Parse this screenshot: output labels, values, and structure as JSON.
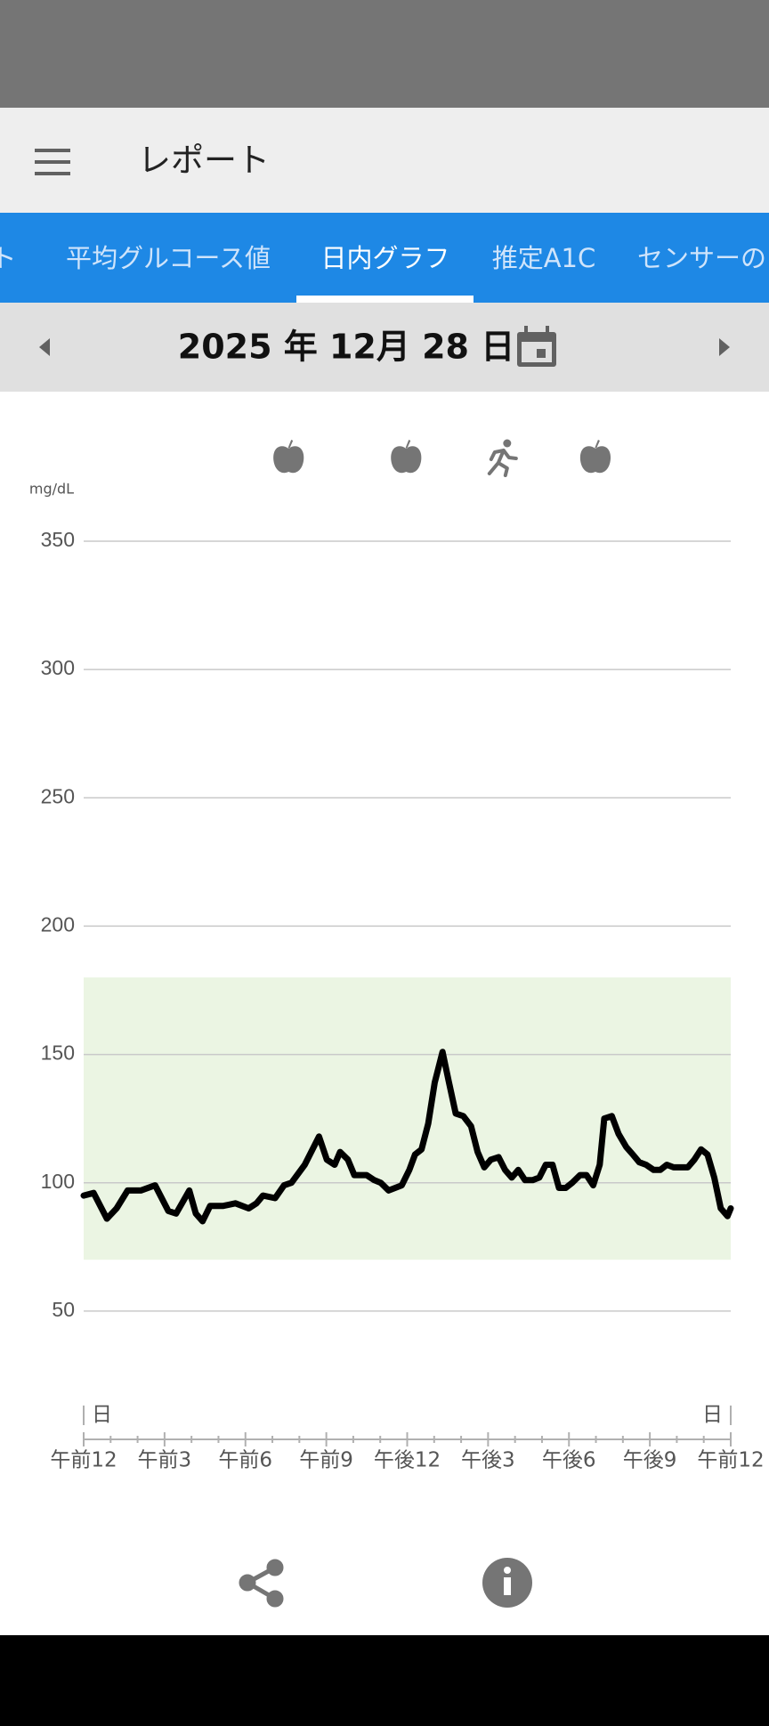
{
  "app_bar": {
    "title": "レポート"
  },
  "tabs": {
    "items": [
      "ト",
      "平均グルコース値",
      "日内グラフ",
      "推定A1C",
      "センサーの"
    ],
    "selected": 2
  },
  "date": "2025 年 12月 28 日",
  "chart_data": {
    "type": "line",
    "y_unit": "mg/dL",
    "color": "#000000",
    "x": [
      0,
      0.37,
      0.86,
      1.22,
      1.63,
      2.12,
      2.65,
      3.14,
      3.43,
      3.92,
      4.16,
      4.41,
      4.69,
      5.18,
      5.63,
      6.12,
      6.41,
      6.65,
      7.1,
      7.43,
      7.71,
      8.2,
      8.73,
      9.02,
      9.31,
      9.51,
      9.8,
      10.04,
      10.49,
      10.78,
      11.02,
      11.31,
      11.8,
      12.08,
      12.29,
      12.53,
      12.78,
      13.02,
      13.31,
      13.55,
      13.8,
      14.08,
      14.37,
      14.61,
      14.86,
      15.1,
      15.39,
      15.63,
      15.88,
      16.12,
      16.37,
      16.65,
      16.9,
      17.14,
      17.39,
      17.63,
      17.88,
      18.12,
      18.41,
      18.65,
      18.9,
      19.14,
      19.31,
      19.59,
      19.84,
      20.12,
      20.37,
      20.61,
      20.86,
      21.14,
      21.39,
      21.63,
      21.88,
      22.41,
      22.65,
      22.9,
      23.14,
      23.39,
      23.63,
      23.88,
      24
    ],
    "values": [
      95,
      96,
      86,
      90,
      97,
      97,
      99,
      89,
      88,
      97,
      88,
      85,
      91,
      91,
      92,
      90,
      92,
      95,
      94,
      99,
      100,
      107,
      118,
      109,
      107,
      112,
      109,
      103,
      103,
      101,
      100,
      97,
      99,
      105,
      111,
      113,
      123,
      139,
      151,
      139,
      127,
      126,
      122,
      112,
      106,
      109,
      110,
      105,
      102,
      105,
      101,
      101,
      102,
      107,
      107,
      98,
      98,
      100,
      103,
      103,
      99,
      107,
      125,
      126,
      119,
      114,
      111,
      108,
      107,
      105,
      105,
      107,
      106,
      106,
      109,
      113,
      111,
      102,
      90,
      87,
      90
    ],
    "target_range": [
      70,
      180
    ],
    "target_color": "#ebf5e3",
    "ylim": [
      0,
      350
    ],
    "yticks": [
      50,
      100,
      150,
      200,
      250,
      300,
      350
    ],
    "grid": true,
    "xlim": [
      0,
      24
    ],
    "xticks": [
      {
        "value": 0,
        "label": "午前12"
      },
      {
        "value": 3,
        "label": "午前3"
      },
      {
        "value": 6,
        "label": "午前6"
      },
      {
        "value": 9,
        "label": "午前9"
      },
      {
        "value": 12,
        "label": "午後12"
      },
      {
        "value": 15,
        "label": "午後3"
      },
      {
        "value": 18,
        "label": "午後6"
      },
      {
        "value": 21,
        "label": "午後9"
      },
      {
        "value": 24,
        "label": "午前12"
      }
    ],
    "xminorticks": [
      1,
      2,
      4,
      5,
      7,
      8,
      10,
      11,
      13,
      14,
      16,
      17,
      19,
      20,
      22,
      23
    ],
    "day_markers": [
      {
        "value": 0,
        "label": "日"
      },
      {
        "value": 24,
        "label": "日"
      }
    ],
    "events": [
      {
        "kind": "meal",
        "x": 7.6
      },
      {
        "kind": "meal",
        "x": 11.96
      },
      {
        "kind": "exercise",
        "x": 15.51
      },
      {
        "kind": "meal",
        "x": 18.98
      }
    ]
  }
}
